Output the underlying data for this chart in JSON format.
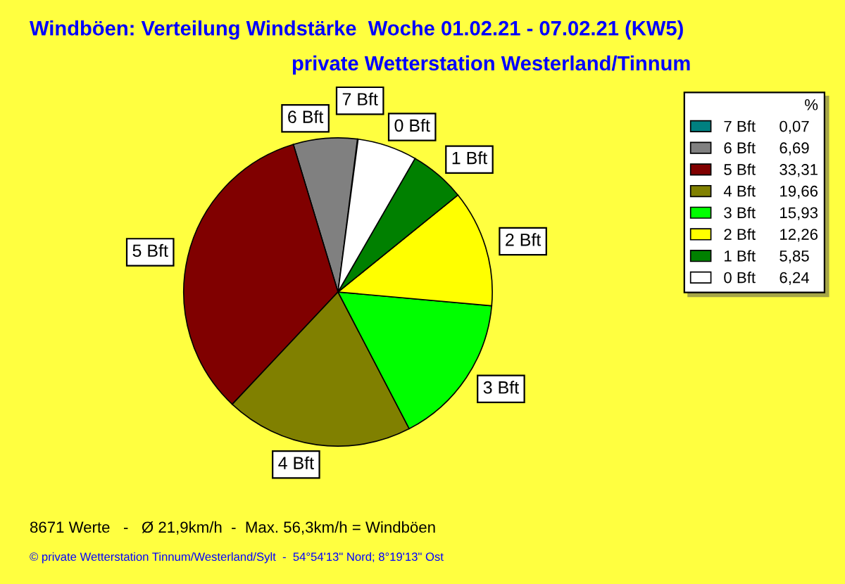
{
  "chart_data": {
    "type": "pie",
    "title": "Windböen: Verteilung Windstärke  Woche 01.02.21 - 07.02.21 (KW5)",
    "subtitle": "private Wetterstation Westerland/Tinnum",
    "categories": [
      "7 Bft",
      "6 Bft",
      "5 Bft",
      "4 Bft",
      "3 Bft",
      "2 Bft",
      "1 Bft",
      "0 Bft"
    ],
    "values": [
      0.07,
      6.69,
      33.31,
      19.66,
      15.93,
      12.26,
      5.85,
      6.24
    ],
    "colors": [
      "#008080",
      "#808080",
      "#800000",
      "#808000",
      "#00ff00",
      "#ffff00",
      "#008000",
      "#ffffff"
    ],
    "value_labels": [
      "0,07",
      "6,69",
      "33,31",
      "19,66",
      "15,93",
      "12,26",
      "5,85",
      "6,24"
    ],
    "legend": "top right",
    "legend_title": "%",
    "annotations": [
      "8671 Werte   -   Ø 21,9km/h  -  Max. 56,3km/h = Windböen",
      "© private Wetterstation Tinnum/Westerland/Sylt  -  54°54'13\" Nord; 8°19'13\" Ost"
    ]
  }
}
